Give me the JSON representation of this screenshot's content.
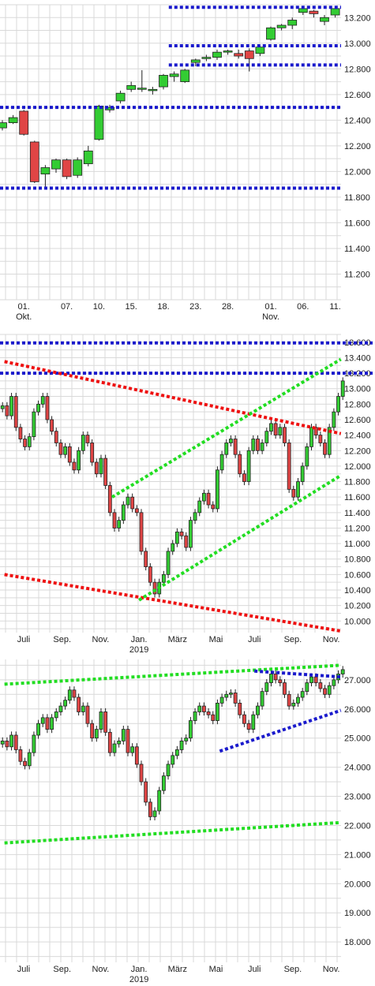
{
  "colors": {
    "grid": "#d9d9d9",
    "up": "#33cc33",
    "down": "#e04545",
    "blue_line": "#1a1acc",
    "red_line": "#ee1111",
    "green_line": "#22dd22",
    "wick": "#222222",
    "text": "#222222"
  },
  "chart_data": [
    {
      "type": "candlestick",
      "title": "",
      "xlabel": "",
      "ylabel": "",
      "ylim": [
        11000,
        13300
      ],
      "y_ticks": [
        "13.200",
        "13.000",
        "12.800",
        "12.600",
        "12.400",
        "12.200",
        "12.000",
        "11.800",
        "11.600",
        "11.400",
        "11.200"
      ],
      "y_tick_values": [
        13200,
        13000,
        12800,
        12600,
        12400,
        12200,
        12000,
        11800,
        11600,
        11400,
        11200
      ],
      "x_labels": [
        {
          "text": "01.",
          "sub": "Okt.",
          "index": 2
        },
        {
          "text": "07.",
          "index": 6
        },
        {
          "text": "10.",
          "index": 9
        },
        {
          "text": "15.",
          "index": 12
        },
        {
          "text": "18.",
          "index": 15
        },
        {
          "text": "23.",
          "index": 18
        },
        {
          "text": "28.",
          "index": 21
        },
        {
          "text": "01.",
          "sub": "Nov.",
          "index": 25
        },
        {
          "text": "06.",
          "index": 28
        },
        {
          "text": "11.",
          "index": 31
        }
      ],
      "candles": [
        {
          "o": 12340,
          "c": 12380,
          "h": 12400,
          "l": 12320
        },
        {
          "o": 12380,
          "c": 12420,
          "h": 12440,
          "l": 12370
        },
        {
          "o": 12470,
          "c": 12290,
          "h": 12480,
          "l": 12280
        },
        {
          "o": 12230,
          "c": 11920,
          "h": 12240,
          "l": 11910
        },
        {
          "o": 11980,
          "c": 12030,
          "h": 12050,
          "l": 11880
        },
        {
          "o": 12020,
          "c": 12090,
          "h": 12100,
          "l": 11990
        },
        {
          "o": 12090,
          "c": 11960,
          "h": 12100,
          "l": 11940
        },
        {
          "o": 11970,
          "c": 12090,
          "h": 12110,
          "l": 11950
        },
        {
          "o": 12060,
          "c": 12160,
          "h": 12200,
          "l": 12040
        },
        {
          "o": 12250,
          "c": 12510,
          "h": 12520,
          "l": 12240
        },
        {
          "o": 12480,
          "c": 12500,
          "h": 12520,
          "l": 12460
        },
        {
          "o": 12550,
          "c": 12610,
          "h": 12630,
          "l": 12530
        },
        {
          "o": 12640,
          "c": 12670,
          "h": 12700,
          "l": 12620
        },
        {
          "o": 12640,
          "c": 12650,
          "h": 12790,
          "l": 12620
        },
        {
          "o": 12630,
          "c": 12640,
          "h": 12660,
          "l": 12600
        },
        {
          "o": 12660,
          "c": 12750,
          "h": 12760,
          "l": 12640
        },
        {
          "o": 12740,
          "c": 12760,
          "h": 12780,
          "l": 12700
        },
        {
          "o": 12700,
          "c": 12790,
          "h": 12800,
          "l": 12690
        },
        {
          "o": 12850,
          "c": 12870,
          "h": 12880,
          "l": 12820
        },
        {
          "o": 12880,
          "c": 12890,
          "h": 12910,
          "l": 12860
        },
        {
          "o": 12890,
          "c": 12930,
          "h": 12950,
          "l": 12870
        },
        {
          "o": 12930,
          "c": 12940,
          "h": 12950,
          "l": 12910
        },
        {
          "o": 12920,
          "c": 12900,
          "h": 12950,
          "l": 12880
        },
        {
          "o": 12940,
          "c": 12880,
          "h": 12960,
          "l": 12780
        },
        {
          "o": 12920,
          "c": 12970,
          "h": 12980,
          "l": 12900
        },
        {
          "o": 13030,
          "c": 13120,
          "h": 13130,
          "l": 13020
        },
        {
          "o": 13120,
          "c": 13140,
          "h": 13150,
          "l": 13100
        },
        {
          "o": 13140,
          "c": 13180,
          "h": 13200,
          "l": 13110
        },
        {
          "o": 13240,
          "c": 13270,
          "h": 13280,
          "l": 13220
        },
        {
          "o": 13250,
          "c": 13230,
          "h": 13260,
          "l": 13200
        },
        {
          "o": 13170,
          "c": 13200,
          "h": 13220,
          "l": 13140
        },
        {
          "o": 13220,
          "c": 13270,
          "h": 13290,
          "l": 13200
        }
      ],
      "hlines": [
        {
          "y": 13280,
          "color": "blue",
          "x_from": 15.5
        },
        {
          "y": 12980,
          "color": "blue",
          "x_from": 15.5
        },
        {
          "y": 12830,
          "color": "blue",
          "x_from": 15.5
        },
        {
          "y": 12500,
          "color": "blue",
          "x_from": -0.5
        },
        {
          "y": 11870,
          "color": "blue",
          "x_from": -0.5
        }
      ]
    },
    {
      "type": "candlestick",
      "title": "",
      "xlabel": "",
      "ylabel": "",
      "ylim": [
        9850,
        13700
      ],
      "y_ticks": [
        "13.600",
        "13.400",
        "13.200",
        "13.000",
        "12.800",
        "12.600",
        "12.400",
        "12.200",
        "12.000",
        "11.800",
        "11.600",
        "11.400",
        "11.200",
        "11.000",
        "10.800",
        "10.600",
        "10.400",
        "10.200",
        "10.000"
      ],
      "y_tick_values": [
        13600,
        13400,
        13200,
        13000,
        12800,
        12600,
        12400,
        12200,
        12000,
        11800,
        11600,
        11400,
        11200,
        11000,
        10800,
        10600,
        10400,
        10200,
        10000
      ],
      "x_labels": [
        {
          "text": "Juli",
          "t": 7
        },
        {
          "text": "Sep.",
          "t": 9
        },
        {
          "text": "Nov.",
          "t": 11
        },
        {
          "text": "Jan.",
          "sub": "2019",
          "t": 13
        },
        {
          "text": "März",
          "t": 15
        },
        {
          "text": "Mai",
          "t": 17
        },
        {
          "text": "Juli",
          "t": 19
        },
        {
          "text": "Sep.",
          "t": 21
        },
        {
          "text": "Nov.",
          "t": 23
        }
      ],
      "weekly_close": [
        12780,
        12650,
        12900,
        12500,
        12350,
        12250,
        12380,
        12700,
        12800,
        12900,
        12600,
        12450,
        12300,
        12150,
        12250,
        12050,
        11950,
        12200,
        12400,
        12300,
        12050,
        11900,
        12100,
        11750,
        11400,
        11200,
        11300,
        11500,
        11600,
        11450,
        11400,
        10900,
        10700,
        10500,
        10350,
        10500,
        10600,
        10900,
        11000,
        11150,
        11100,
        10950,
        11300,
        11400,
        11550,
        11650,
        11500,
        11450,
        11950,
        12150,
        12300,
        12350,
        12150,
        11900,
        11800,
        12200,
        12350,
        12200,
        12300,
        12450,
        12550,
        12400,
        12500,
        12300,
        11700,
        11600,
        11800,
        12000,
        12250,
        12500,
        12400,
        12300,
        12150,
        12500,
        12700,
        12900,
        13100
      ],
      "hlines": [
        {
          "y": 13590,
          "color": "blue"
        },
        {
          "y": 13200,
          "color": "blue"
        }
      ],
      "trendlines": [
        {
          "color": "red",
          "from": {
            "t": 6,
            "y": 13350
          },
          "to": {
            "t": 23.5,
            "y": 12420
          }
        },
        {
          "color": "red",
          "from": {
            "t": 6,
            "y": 10600
          },
          "to": {
            "t": 23.5,
            "y": 9870
          }
        },
        {
          "color": "green",
          "from": {
            "t": 11.6,
            "y": 11600
          },
          "to": {
            "t": 23.5,
            "y": 13380
          }
        },
        {
          "color": "green",
          "from": {
            "t": 13,
            "y": 10270
          },
          "to": {
            "t": 23.5,
            "y": 11880
          }
        }
      ]
    },
    {
      "type": "candlestick",
      "title": "",
      "xlabel": "",
      "ylabel": "",
      "ylim": [
        17300,
        27700
      ],
      "y_ticks": [
        "27.000",
        "26.000",
        "25.000",
        "24.000",
        "23.000",
        "22.000",
        "21.000",
        "20.000",
        "19.000",
        "18.000"
      ],
      "y_tick_values": [
        27000,
        26000,
        25000,
        24000,
        23000,
        22000,
        21000,
        20000,
        19000,
        18000
      ],
      "x_labels": [
        {
          "text": "Juli",
          "t": 7
        },
        {
          "text": "Sep.",
          "t": 9
        },
        {
          "text": "Nov.",
          "t": 11
        },
        {
          "text": "Jan.",
          "sub": "2019",
          "t": 13
        },
        {
          "text": "März",
          "t": 15
        },
        {
          "text": "Mai",
          "t": 17
        },
        {
          "text": "Juli",
          "t": 19
        },
        {
          "text": "Sep.",
          "t": 21
        },
        {
          "text": "Nov.",
          "t": 23
        }
      ],
      "weekly_close": [
        24900,
        24700,
        25100,
        24600,
        24200,
        24050,
        24500,
        25100,
        25500,
        25700,
        25300,
        25700,
        25900,
        26100,
        26300,
        26650,
        26400,
        25900,
        26100,
        25500,
        25000,
        25300,
        25900,
        25200,
        24500,
        24800,
        24900,
        25300,
        24500,
        24700,
        24100,
        23500,
        22800,
        22300,
        22500,
        23200,
        23700,
        24100,
        24400,
        24600,
        24900,
        25000,
        25600,
        25900,
        26100,
        25900,
        25800,
        25600,
        26200,
        26400,
        26500,
        26550,
        26200,
        25800,
        25500,
        25300,
        25800,
        26100,
        26600,
        26900,
        27200,
        27000,
        26900,
        26500,
        26100,
        26200,
        26400,
        26600,
        26900,
        27100,
        26900,
        26700,
        26500,
        26800,
        27000,
        27200,
        27350
      ],
      "trendlines": [
        {
          "color": "green",
          "from": {
            "t": 6,
            "y": 26850
          },
          "to": {
            "t": 23.5,
            "y": 27500
          }
        },
        {
          "color": "green",
          "from": {
            "t": 6,
            "y": 21400
          },
          "to": {
            "t": 23.5,
            "y": 22100
          }
        },
        {
          "color": "blue",
          "from": {
            "t": 19,
            "y": 27300
          },
          "to": {
            "t": 23.5,
            "y": 27100
          }
        },
        {
          "color": "blue",
          "from": {
            "t": 17.2,
            "y": 24550
          },
          "to": {
            "t": 23.5,
            "y": 25950
          }
        }
      ]
    }
  ]
}
